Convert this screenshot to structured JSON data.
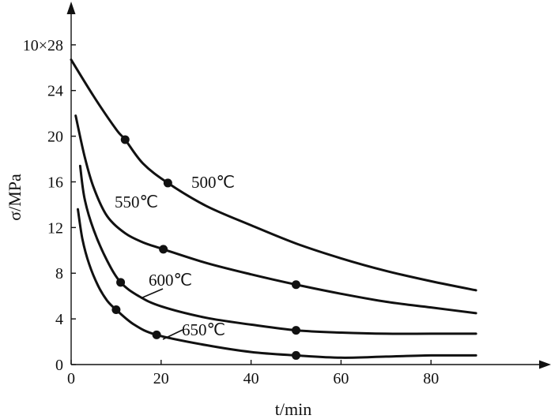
{
  "chart_data": {
    "type": "line",
    "xlabel": "t/min",
    "ylabel": "σ/MPa",
    "xlim": [
      0,
      105
    ],
    "ylim": [
      0,
      31
    ],
    "x_ticks": [
      0,
      20,
      40,
      60,
      80
    ],
    "y_ticks": [
      {
        "value": 0,
        "label": "0"
      },
      {
        "value": 4,
        "label": "4"
      },
      {
        "value": 8,
        "label": "8"
      },
      {
        "value": 12,
        "label": "12"
      },
      {
        "value": 16,
        "label": "16"
      },
      {
        "value": 20,
        "label": "20"
      },
      {
        "value": 24,
        "label": "24"
      },
      {
        "value": 28,
        "label": "10×28"
      }
    ],
    "series": [
      {
        "name": "500℃",
        "curve": [
          [
            0,
            26.7
          ],
          [
            5,
            23.5
          ],
          [
            10,
            20.6
          ],
          [
            12,
            19.7
          ],
          [
            16,
            17.6
          ],
          [
            21.5,
            15.9
          ],
          [
            30,
            13.9
          ],
          [
            40,
            12.2
          ],
          [
            50,
            10.6
          ],
          [
            60,
            9.3
          ],
          [
            70,
            8.2
          ],
          [
            80,
            7.3
          ],
          [
            90,
            6.5
          ]
        ],
        "markers": [
          [
            12,
            19.7
          ],
          [
            21.5,
            15.9
          ]
        ]
      },
      {
        "name": "550℃",
        "curve": [
          [
            1,
            21.8
          ],
          [
            3,
            18.2
          ],
          [
            5,
            15.5
          ],
          [
            8,
            13.0
          ],
          [
            12,
            11.5
          ],
          [
            16,
            10.7
          ],
          [
            20.5,
            10.1
          ],
          [
            30,
            8.9
          ],
          [
            40,
            7.9
          ],
          [
            50,
            7.0
          ],
          [
            60,
            6.2
          ],
          [
            70,
            5.5
          ],
          [
            80,
            5.0
          ],
          [
            90,
            4.5
          ]
        ],
        "markers": [
          [
            20.5,
            10.1
          ],
          [
            50,
            7.0
          ]
        ]
      },
      {
        "name": "600℃",
        "curve": [
          [
            2,
            17.4
          ],
          [
            3,
            14.5
          ],
          [
            5,
            11.8
          ],
          [
            8,
            9.1
          ],
          [
            11,
            7.2
          ],
          [
            15,
            6.0
          ],
          [
            20,
            5.1
          ],
          [
            30,
            4.1
          ],
          [
            40,
            3.5
          ],
          [
            50,
            3.0
          ],
          [
            60,
            2.8
          ],
          [
            70,
            2.7
          ],
          [
            80,
            2.7
          ],
          [
            90,
            2.7
          ]
        ],
        "markers": [
          [
            11,
            7.2
          ],
          [
            50,
            3.0
          ]
        ]
      },
      {
        "name": "650℃",
        "curve": [
          [
            1.5,
            13.6
          ],
          [
            2.5,
            11.0
          ],
          [
            4,
            8.8
          ],
          [
            6,
            6.9
          ],
          [
            8,
            5.6
          ],
          [
            10,
            4.8
          ],
          [
            14,
            3.5
          ],
          [
            19,
            2.6
          ],
          [
            30,
            1.7
          ],
          [
            40,
            1.1
          ],
          [
            50,
            0.8
          ],
          [
            60,
            0.6
          ],
          [
            70,
            0.7
          ],
          [
            80,
            0.8
          ],
          [
            90,
            0.8
          ]
        ],
        "markers": [
          [
            10,
            4.8
          ],
          [
            19,
            2.6
          ],
          [
            50,
            0.8
          ]
        ]
      }
    ],
    "grid": false,
    "legend": "inline-labels"
  }
}
